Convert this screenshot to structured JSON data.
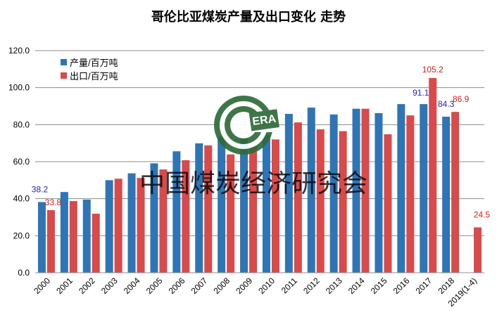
{
  "chart_data": {
    "type": "bar",
    "title": "哥伦比亚煤炭产量及出口变化 走势",
    "categories": [
      "2000",
      "2001",
      "2002",
      "2003",
      "2004",
      "2005",
      "2006",
      "2007",
      "2008",
      "2009",
      "2010",
      "2011",
      "2012",
      "2013",
      "2014",
      "2015",
      "2016",
      "2017",
      "2018",
      "2019(1-4)"
    ],
    "series": [
      {
        "name": "产量/百万吨",
        "color": "#2e75b6",
        "values": [
          38.2,
          43.6,
          39.5,
          50.0,
          53.7,
          59.1,
          65.6,
          69.9,
          73.5,
          72.8,
          74.4,
          85.8,
          89.2,
          85.5,
          88.6,
          86.2,
          91.1,
          91.1,
          84.3,
          null
        ],
        "labels": {
          "0": "38.2",
          "17": "91.1",
          "18": "84.3"
        }
      },
      {
        "name": "出口/百万吨",
        "color": "#d94a4a",
        "values": [
          33.8,
          38.7,
          31.9,
          50.8,
          51.2,
          55.8,
          60.8,
          68.8,
          63.9,
          68.4,
          72.0,
          81.2,
          77.5,
          76.5,
          88.6,
          74.8,
          85.0,
          105.2,
          86.9,
          24.5
        ],
        "labels": {
          "0": "33.8",
          "17": "105.2",
          "18": "86.9",
          "19": "24.5"
        }
      }
    ],
    "ylim": [
      0,
      120
    ],
    "yticks": [
      "0.0",
      "20.0",
      "40.0",
      "60.0",
      "80.0",
      "100.0",
      "120.0"
    ],
    "grid": true,
    "legend_position": "top-left",
    "label_colors": {
      "production": "#1f1fb4",
      "export": "#cc1f1f"
    }
  },
  "watermark": {
    "text": "中国煤炭经济研究会",
    "logo_text": "ERA",
    "logo_color": "#2f6b3a"
  }
}
